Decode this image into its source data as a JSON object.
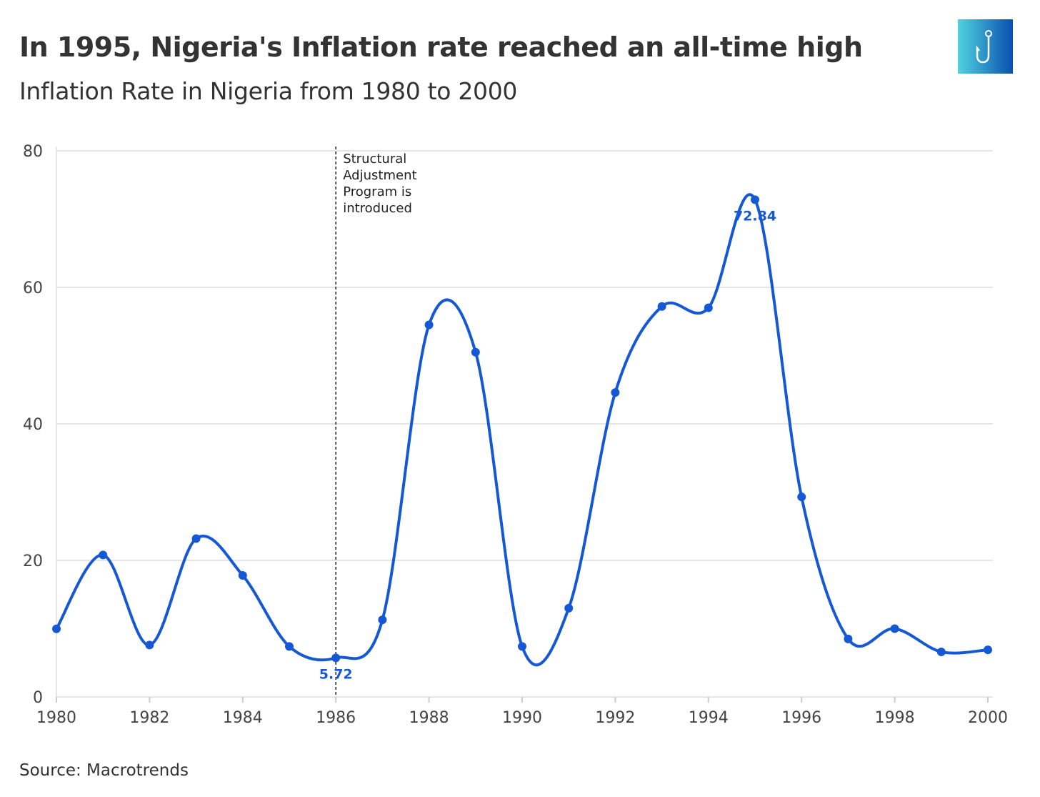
{
  "header": {
    "title": "In 1995, Nigeria's Inflation rate reached an all-time high",
    "subtitle": "Inflation Rate in Nigeria from 1980 to 2000"
  },
  "footer": {
    "source": "Source: Macrotrends"
  },
  "logo": {
    "icon": "fish-hook-icon",
    "colors": [
      "#4fd3e0",
      "#0a4fb0"
    ]
  },
  "chart_data": {
    "type": "line",
    "title": "In 1995, Nigeria's Inflation rate reached an all-time high",
    "subtitle": "Inflation Rate in Nigeria from 1980 to 2000",
    "xlabel": "",
    "ylabel": "",
    "x": [
      1980,
      1981,
      1982,
      1983,
      1984,
      1985,
      1986,
      1987,
      1988,
      1989,
      1990,
      1991,
      1992,
      1993,
      1994,
      1995,
      1996,
      1997,
      1998,
      1999,
      2000
    ],
    "series": [
      {
        "name": "Inflation Rate",
        "color": "#1558d6",
        "values": [
          9.97,
          20.8,
          7.6,
          23.2,
          17.8,
          7.4,
          5.72,
          11.3,
          54.5,
          50.5,
          7.4,
          13.0,
          44.6,
          57.2,
          57.0,
          72.84,
          29.3,
          8.5,
          10.0,
          6.6,
          6.9
        ]
      }
    ],
    "xlim": [
      1980,
      2000
    ],
    "ylim": [
      0,
      80
    ],
    "xticks": [
      "1980",
      "1982",
      "1984",
      "1986",
      "1988",
      "1990",
      "1992",
      "1994",
      "1996",
      "1998",
      "2000"
    ],
    "yticks": [
      "0",
      "20",
      "40",
      "60",
      "80"
    ],
    "grid": true,
    "data_labels": [
      {
        "x": 1986,
        "text": "5.72",
        "position": "below"
      },
      {
        "x": 1995,
        "text": "72.84",
        "position": "below"
      }
    ],
    "annotations": [
      {
        "x": 1986,
        "type": "vertical-dashed-line",
        "lines": [
          "Structural",
          "Adjustment",
          "Program is",
          "introduced"
        ]
      }
    ]
  }
}
